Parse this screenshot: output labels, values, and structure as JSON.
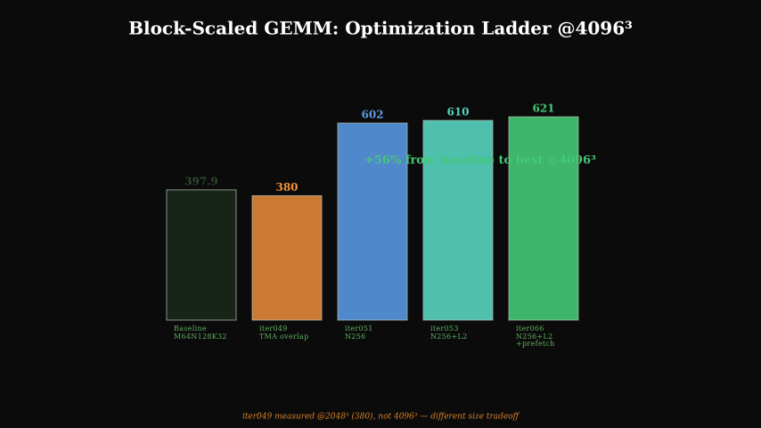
{
  "chart_data": {
    "type": "bar",
    "title": "Block-Scaled GEMM: Optimization Ladder @4096³",
    "categories": [
      "Baseline\nM64N128K32",
      "iter049\nTMA overlap",
      "iter051\nN256",
      "iter053\nN256+L2",
      "iter066\nN256+L2\n+prefetch"
    ],
    "values": [
      397.9,
      380,
      602,
      610,
      621
    ],
    "colors": [
      "#182418",
      "#cc7a33",
      "#5088cc",
      "#4fbfae",
      "#3db56a"
    ],
    "label_colors": [
      "#2e4a2e",
      "#f0923a",
      "#5b9be0",
      "#57d0bc",
      "#45c877"
    ],
    "annotation": "+56% from baseline to best @4096³",
    "footnote": "iter049 measured @2048³ (380), not 4096³ — different size tradeoff"
  }
}
